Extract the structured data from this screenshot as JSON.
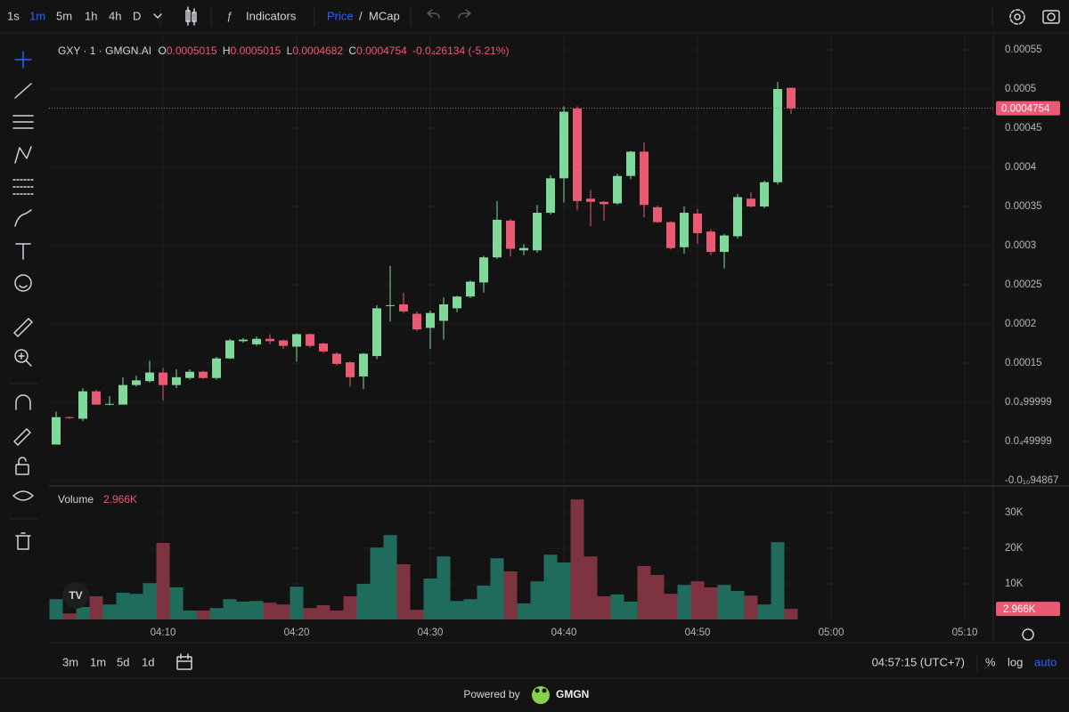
{
  "toolbar": {
    "intervals": [
      "1s",
      "1m",
      "5m",
      "1h",
      "4h",
      "D"
    ],
    "indicators": "Indicators",
    "price": "Price",
    "separator": "/",
    "mcap": "MCap"
  },
  "header": {
    "symbol": "GXY · 1 · GMGN.AI",
    "o_label": "O",
    "o": "0.0005015",
    "h_label": "H",
    "h": "0.0005015",
    "l_label": "L",
    "l": "0.0004682",
    "c_label": "C",
    "c": "0.0004754",
    "change": "-0.0₄26134 (-5.21%)"
  },
  "last_price_label": "0.0004754",
  "volume_title": "Volume",
  "volume_last_label": "2.966K",
  "bottom_bar": {
    "ranges": [
      "3m",
      "1m",
      "5d",
      "1d"
    ],
    "clock": "04:57:15 (UTC+7)",
    "scale_options": [
      "%",
      "log",
      "auto"
    ]
  },
  "footer": {
    "powered": "Powered by",
    "brand": "GMGN"
  },
  "chart_data": {
    "type": "candlestick",
    "up_color": "#7fd99a",
    "down_color": "#ea5a72",
    "volume_up_color": "#1f6b5c",
    "volume_down_color": "#7d3440",
    "categories": [
      null,
      null,
      null,
      null,
      null,
      null,
      null,
      null,
      "04:10",
      null,
      null,
      null,
      null,
      null,
      null,
      null,
      null,
      null,
      "04:20",
      null,
      null,
      null,
      null,
      null,
      null,
      null,
      null,
      null,
      "04:30",
      null,
      null,
      null,
      null,
      null,
      null,
      null,
      null,
      null,
      "04:40",
      null,
      null,
      null,
      null,
      null,
      null,
      null,
      null,
      null,
      "04:50",
      null,
      null,
      null,
      null,
      null,
      null,
      null,
      null,
      null,
      "05:00",
      null,
      null,
      null,
      null,
      null,
      null,
      null,
      null,
      null,
      "05:10"
    ],
    "open": [
      4.6e-05,
      8.1e-05,
      7.9e-05,
      0.000114,
      9.8e-05,
      9.7e-05,
      0.000122,
      0.000127,
      0.000138,
      0.000122,
      0.000131,
      0.000139,
      0.000131,
      0.000156,
      0.000178,
      0.000174,
      0.000181,
      0.000179,
      0.000171,
      0.000187,
      0.000175,
      0.000162,
      0.000151,
      0.000133,
      0.000159,
      0.000223,
      0.000225,
      0.000213,
      0.000195,
      0.000204,
      0.00022,
      0.000235,
      0.000253,
      0.000285,
      0.000332,
      0.000294,
      0.000294,
      0.000342,
      0.000386,
      0.000475,
      0.00036,
      0.000356,
      0.000354,
      0.000389,
      0.00042,
      0.000349,
      0.00033,
      0.000298,
      0.000341,
      0.000318,
      0.000292,
      0.000312,
      0.00036,
      0.00035,
      0.000381,
      0.0005015,
      null,
      null,
      null,
      null,
      null,
      null,
      null,
      null,
      null,
      null,
      null,
      null,
      null
    ],
    "high": [
      8.8e-05,
      8.2e-05,
      0.000118,
      0.000116,
      0.000108,
      0.000132,
      0.000134,
      0.000153,
      0.000144,
      0.000142,
      0.000142,
      0.00014,
      0.000158,
      0.000181,
      0.000182,
      0.000184,
      0.000187,
      0.00018,
      0.000188,
      0.000188,
      0.000176,
      0.000164,
      0.000152,
      0.000163,
      0.000224,
      0.000274,
      0.00024,
      0.000216,
      0.000217,
      0.000234,
      0.000236,
      0.000256,
      0.000287,
      0.000357,
      0.000334,
      0.000302,
      0.000352,
      0.00039,
      0.000478,
      0.000478,
      0.000371,
      0.000357,
      0.000392,
      0.000421,
      0.000432,
      0.000351,
      0.000331,
      0.00035,
      0.000347,
      0.000321,
      0.000315,
      0.000366,
      0.000368,
      0.000383,
      0.000509,
      0.0005015,
      null,
      null,
      null,
      null,
      null,
      null,
      null,
      null,
      null,
      null,
      null,
      null,
      null
    ],
    "low": [
      4.6e-05,
      7.9e-05,
      7.6e-05,
      9.7e-05,
      9.6e-05,
      9.7e-05,
      0.00012,
      0.000125,
      0.000102,
      0.000118,
      0.000129,
      0.00013,
      0.000129,
      0.000155,
      0.000176,
      0.000172,
      0.000174,
      0.000168,
      0.000152,
      0.00017,
      0.000163,
      0.000147,
      0.00012,
      0.000117,
      0.000155,
      0.000203,
      0.000214,
      0.000191,
      0.000168,
      0.00018,
      0.000215,
      0.000233,
      0.00024,
      0.000283,
      0.000286,
      0.000288,
      0.000291,
      0.00034,
      0.000355,
      0.000345,
      0.000325,
      0.000332,
      0.000352,
      0.000385,
      0.000336,
      0.000329,
      0.000295,
      0.00029,
      0.000302,
      0.000288,
      0.000271,
      0.000309,
      0.000349,
      0.000348,
      0.000378,
      0.0004682,
      null,
      null,
      null,
      null,
      null,
      null,
      null,
      null,
      null,
      null,
      null,
      null,
      null
    ],
    "close": [
      8.1e-05,
      8e-05,
      0.000114,
      9.7e-05,
      9.8e-05,
      0.000122,
      0.000128,
      0.000138,
      0.000122,
      0.000132,
      0.000139,
      0.000131,
      0.000156,
      0.000179,
      0.00018,
      0.000181,
      0.000178,
      0.000172,
      0.000187,
      0.000172,
      0.000165,
      0.000149,
      0.000132,
      0.000162,
      0.00022,
      0.000224,
      0.000216,
      0.000193,
      0.000214,
      0.000225,
      0.000235,
      0.000254,
      0.000285,
      0.000333,
      0.000296,
      0.000297,
      0.000342,
      0.000386,
      0.000471,
      0.000357,
      0.000356,
      0.000353,
      0.000389,
      0.00042,
      0.000352,
      0.00033,
      0.000297,
      0.000342,
      0.000316,
      0.000292,
      0.000313,
      0.000362,
      0.00035,
      0.000381,
      0.0005,
      0.0004754,
      null,
      null,
      null,
      null,
      null,
      null,
      null,
      null,
      null,
      null,
      null,
      null,
      null
    ],
    "volume": [
      5700,
      1700,
      3500,
      6500,
      4200,
      7500,
      7200,
      10200,
      21500,
      9000,
      2500,
      2500,
      3200,
      5700,
      5000,
      5200,
      4700,
      4200,
      9200,
      3200,
      4000,
      2500,
      6500,
      10000,
      20200,
      23700,
      15500,
      2700,
      11500,
      17700,
      5200,
      5700,
      9500,
      17200,
      13500,
      4500,
      10700,
      18200,
      16000,
      33700,
      17700,
      6500,
      7000,
      5000,
      15000,
      12500,
      7200,
      9700,
      10700,
      9000,
      9700,
      8000,
      6700,
      4200,
      21700,
      2966,
      null,
      null,
      null,
      null,
      null,
      null,
      null,
      null,
      null,
      null,
      null,
      null,
      null
    ],
    "ylim": [
      -5.7e-06,
      0.0005705
    ],
    "yticks": [
      {
        "value": -9.4867e-12,
        "label": "-0.0₁₀94867"
      },
      {
        "value": 4.99999e-05,
        "label": "0.0₄49999"
      },
      {
        "value": 9.99999e-05,
        "label": "0.0₄99999"
      },
      0.00015,
      0.0002,
      0.00025,
      0.0003,
      0.00035,
      0.0004,
      0.00045,
      0.0005,
      0.00055
    ],
    "volume_ylim": [
      0,
      37000
    ],
    "volume_ticks": [
      {
        "value": 10000,
        "label": "10K"
      },
      {
        "value": 20000,
        "label": "20K"
      },
      {
        "value": 30000,
        "label": "30K"
      }
    ],
    "grid": true
  }
}
